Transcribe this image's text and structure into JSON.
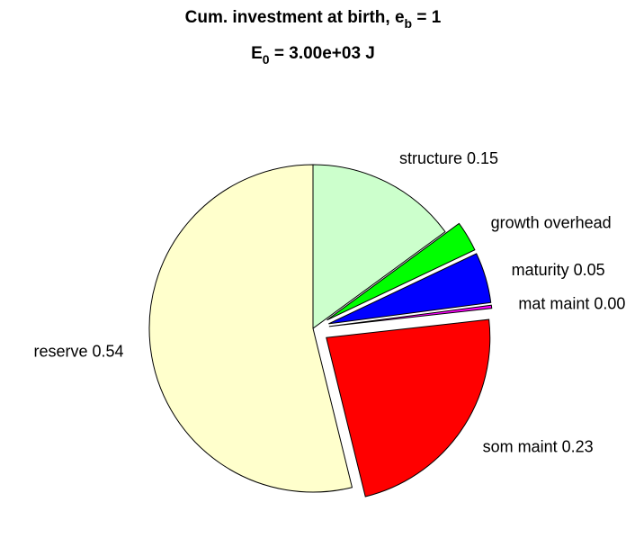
{
  "title": {
    "line1_main": "Cum. investment at birth, e",
    "line1_sub": "b",
    "line1_tail": " = 1",
    "line2_main": "E",
    "line2_sub": "0",
    "line2_tail": " = 3.00e+03 J"
  },
  "chart_data": {
    "type": "pie",
    "slices": [
      {
        "label": "structure 0.15",
        "value": 0.15,
        "color": "#CCFFCC",
        "exploded": false
      },
      {
        "label": "growth overhead",
        "value": 0.03,
        "color": "#00FF00",
        "exploded": true
      },
      {
        "label": "maturity 0.05",
        "value": 0.05,
        "color": "#0000FF",
        "exploded": true
      },
      {
        "label": "mat maint 0.00",
        "value": 0.003,
        "color": "#FF00FF",
        "exploded": true
      },
      {
        "label": "som maint 0.23",
        "value": 0.23,
        "color": "#FF0000",
        "exploded": true
      },
      {
        "label": "reserve 0.54",
        "value": 0.54,
        "color": "#FFFFCC",
        "exploded": false
      }
    ]
  }
}
